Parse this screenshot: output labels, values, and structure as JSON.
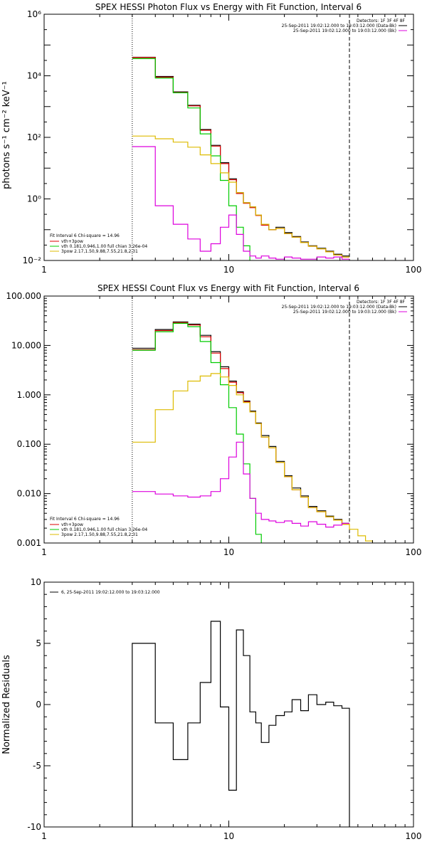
{
  "chart_data": [
    {
      "type": "line",
      "scale": "log-log",
      "title": "SPEX HESSI Photon Flux vs Energy with Fit Function, Interval 6",
      "ylabel": "photons s⁻¹ cm⁻² keV⁻¹",
      "xlim": [
        1,
        100
      ],
      "ylim": [
        0.01,
        1000000
      ],
      "xticks": [
        {
          "v": 1,
          "label": "1"
        },
        {
          "v": 10,
          "label": "10"
        },
        {
          "v": 100,
          "label": "100"
        }
      ],
      "yticks": [
        {
          "v": 0.01,
          "label": "10⁻²"
        },
        {
          "v": 1,
          "label": "10⁰"
        },
        {
          "v": 100,
          "label": "10²"
        },
        {
          "v": 10000,
          "label": "10⁴"
        },
        {
          "v": 1000000,
          "label": "10⁶"
        }
      ],
      "vlines": [
        {
          "x": 3.0,
          "style": "dotted"
        },
        {
          "x": 45,
          "style": "dashed"
        }
      ],
      "legend_top": [
        "Detectors: 1F 3F 4F 8F",
        "25-Sep-2011 19:02:12.000 to 19:03:12.000 (Data-Bk)",
        "25-Sep-2011 19:02:12.000 to 19:03:12.000 (Bk)"
      ],
      "legend_top_colors": [
        "none",
        "#000000",
        "#dd00dd"
      ],
      "legend_bottom": [
        "Fit Interval 6   Chi-square = 14.96",
        "vth+3pow",
        "vth 0.181,0.946,1.00  full chian 3.26e-04",
        "3pow 2.17,1.50,9.88,7.55,21.8,2.31"
      ],
      "legend_bottom_colors": [
        "none",
        "#dd0000",
        "#00cc00",
        "#ddbb00"
      ],
      "edges": [
        3.0,
        4.0,
        5.0,
        6.0,
        7.0,
        8.0,
        9.0,
        10.0,
        11.0,
        12.0,
        13.0,
        14.0,
        15.0,
        16.5,
        18.0,
        20.0,
        22.0,
        24.5,
        27.0,
        30.0,
        33.5,
        37.0,
        41.0,
        45.0
      ],
      "series": [
        {
          "name": "Data-Bk",
          "color": "#000000",
          "step": true,
          "values": [
            40000,
            9500,
            3000,
            1100,
            180,
            55,
            15,
            4.5,
            1.6,
            0.75,
            0.55,
            0.3,
            0.15,
            0.1,
            0.12,
            0.08,
            0.06,
            0.04,
            0.03,
            0.025,
            0.02,
            0.016,
            0.014
          ]
        },
        {
          "name": "vth+3pow",
          "color": "#dd0000",
          "step": true,
          "values": [
            39000,
            9000,
            2900,
            1050,
            170,
            52,
            14,
            4.2,
            1.5,
            0.72,
            0.52,
            0.29,
            0.14,
            0.1,
            0.11,
            0.075,
            0.057,
            0.038,
            0.029,
            0.024,
            0.019,
            0.015,
            0.013
          ]
        },
        {
          "name": "vth",
          "color": "#00cc00",
          "step": true,
          "values": [
            36000,
            8500,
            2800,
            900,
            130,
            25,
            4,
            0.6,
            0.12,
            0.03,
            0.009
          ]
        },
        {
          "name": "3pow",
          "color": "#ddbb00",
          "step": true,
          "values": [
            110,
            90,
            70,
            48,
            27,
            14,
            7,
            3.5,
            1.6,
            0.75,
            0.55,
            0.3,
            0.15,
            0.1,
            0.11,
            0.075,
            0.057,
            0.038,
            0.029,
            0.024,
            0.019,
            0.015,
            0.013
          ]
        },
        {
          "name": "Bk",
          "color": "#dd00dd",
          "step": true,
          "values": [
            50,
            0.6,
            0.15,
            0.05,
            0.02,
            0.035,
            0.12,
            0.3,
            0.07,
            0.02,
            0.014,
            0.012,
            0.014,
            0.012,
            0.011,
            0.013,
            0.012,
            0.011,
            0.011,
            0.013,
            0.012,
            0.013,
            0.011
          ]
        }
      ]
    },
    {
      "type": "line",
      "scale": "log-log",
      "title": "SPEX HESSI Count Flux vs Energy with Fit Function, Interval 6",
      "ylabel": "",
      "xlim": [
        1,
        100
      ],
      "ylim": [
        0.001,
        100
      ],
      "xticks": [
        {
          "v": 1,
          "label": "1"
        },
        {
          "v": 10,
          "label": "10"
        },
        {
          "v": 100,
          "label": "100"
        }
      ],
      "yticks": [
        {
          "v": 0.001,
          "label": "0.001"
        },
        {
          "v": 0.01,
          "label": "0.010"
        },
        {
          "v": 0.1,
          "label": "0.100"
        },
        {
          "v": 1,
          "label": "1.000"
        },
        {
          "v": 10,
          "label": "10.000"
        },
        {
          "v": 100,
          "label": "100.000"
        }
      ],
      "vlines": [
        {
          "x": 3.0,
          "style": "dotted"
        },
        {
          "x": 45,
          "style": "dashed"
        }
      ],
      "legend_top": [
        "Detectors: 1F 3F 4F 8F",
        "25-Sep-2011 19:02:12.000 to 19:03:12.000 (Data-Bk)",
        "25-Sep-2011 19:02:12.000 to 19:03:12.000 (Bk)"
      ],
      "legend_top_colors": [
        "none",
        "#000000",
        "#dd00dd"
      ],
      "legend_bottom": [
        "Fit Interval 6   Chi-square = 14.96",
        "vth+3pow",
        "vth 0.181,0.946,1.00  full chian 3.26e-04",
        "3pow 2.17,1.50,9.88,7.55,21.8,2.31"
      ],
      "legend_bottom_colors": [
        "none",
        "#dd0000",
        "#00cc00",
        "#ddbb00"
      ],
      "edges": [
        3.0,
        4.0,
        5.0,
        6.0,
        7.0,
        8.0,
        9.0,
        10.0,
        11.0,
        12.0,
        13.0,
        14.0,
        15.0,
        16.5,
        18.0,
        20.0,
        22.0,
        24.5,
        27.0,
        30.0,
        33.5,
        37.0,
        41.0,
        45.0,
        50.0,
        55.0,
        60.0,
        66.0
      ],
      "series": [
        {
          "name": "Data-Bk",
          "color": "#000000",
          "step": true,
          "values": [
            8.8,
            21,
            30,
            27,
            16,
            7.5,
            3.7,
            1.9,
            1.15,
            0.75,
            0.47,
            0.27,
            0.15,
            0.09,
            0.045,
            0.023,
            0.013,
            0.009,
            0.0055,
            0.0045,
            0.0035,
            0.003,
            0.0025
          ]
        },
        {
          "name": "vth+3pow",
          "color": "#dd0000",
          "step": true,
          "values": [
            8.2,
            20,
            29,
            26,
            15,
            7,
            3.4,
            1.8,
            1.1,
            0.72,
            0.45,
            0.26,
            0.14,
            0.085,
            0.043,
            0.022,
            0.012,
            0.0085,
            0.0052,
            0.0043,
            0.0034,
            0.0029,
            0.0024
          ]
        },
        {
          "name": "vth",
          "color": "#00cc00",
          "step": true,
          "values": [
            8.0,
            19,
            28,
            24,
            12,
            4.5,
            1.6,
            0.55,
            0.16,
            0.04,
            0.008,
            0.0015,
            0.0008
          ]
        },
        {
          "name": "3pow",
          "color": "#ddbb00",
          "step": true,
          "values": [
            0.11,
            0.5,
            1.2,
            1.9,
            2.4,
            2.7,
            2.3,
            1.55,
            1.0,
            0.7,
            0.45,
            0.26,
            0.14,
            0.085,
            0.043,
            0.022,
            0.012,
            0.0085,
            0.0052,
            0.0043,
            0.0034,
            0.0029,
            0.0024,
            0.0019,
            0.0014,
            0.0011,
            0.0009
          ]
        },
        {
          "name": "Bk",
          "color": "#dd00dd",
          "step": true,
          "values": [
            0.011,
            0.0098,
            0.009,
            0.0085,
            0.009,
            0.011,
            0.02,
            0.055,
            0.11,
            0.025,
            0.008,
            0.004,
            0.003,
            0.0028,
            0.0026,
            0.0028,
            0.0025,
            0.0022,
            0.0027,
            0.0024,
            0.0021,
            0.0023,
            0.0025
          ]
        }
      ]
    },
    {
      "type": "line",
      "scale": "log-linear",
      "title": "",
      "ylabel": "Normalized Residuals",
      "xlim": [
        1,
        100
      ],
      "ylim": [
        -10,
        10
      ],
      "xticks": [
        {
          "v": 1,
          "label": "1"
        },
        {
          "v": 10,
          "label": "10"
        },
        {
          "v": 100,
          "label": "100"
        }
      ],
      "yticks": [
        {
          "v": -10,
          "label": "-10"
        },
        {
          "v": -5,
          "label": "-5"
        },
        {
          "v": 0,
          "label": "0"
        },
        {
          "v": 5,
          "label": "5"
        },
        {
          "v": 10,
          "label": "10"
        }
      ],
      "legend_top": [
        "6, 25-Sep-2011 19:02:12.000 to 19:03:12.000"
      ],
      "legend_top_colors": [
        "#000000"
      ],
      "edges": [
        3.0,
        4.0,
        5.0,
        6.0,
        7.0,
        8.0,
        9.0,
        10.0,
        11.0,
        12.0,
        13.0,
        14.0,
        15.0,
        16.5,
        18.0,
        20.0,
        22.0,
        24.5,
        27.0,
        30.0,
        33.5,
        37.0,
        41.0,
        45.0
      ],
      "series": [
        {
          "name": "6, 25-Sep-2011 19:02:12.000 to 19:03:12.000",
          "color": "#000000",
          "step": true,
          "values": [
            5.0,
            -1.5,
            -4.5,
            -1.5,
            1.8,
            6.8,
            -0.2,
            -7.0,
            6.1,
            4.0,
            -0.6,
            -1.5,
            -3.1,
            -1.7,
            -0.9,
            -0.6,
            0.4,
            -0.5,
            0.8,
            0.0,
            0.2,
            -0.1,
            -0.3
          ]
        }
      ]
    }
  ]
}
